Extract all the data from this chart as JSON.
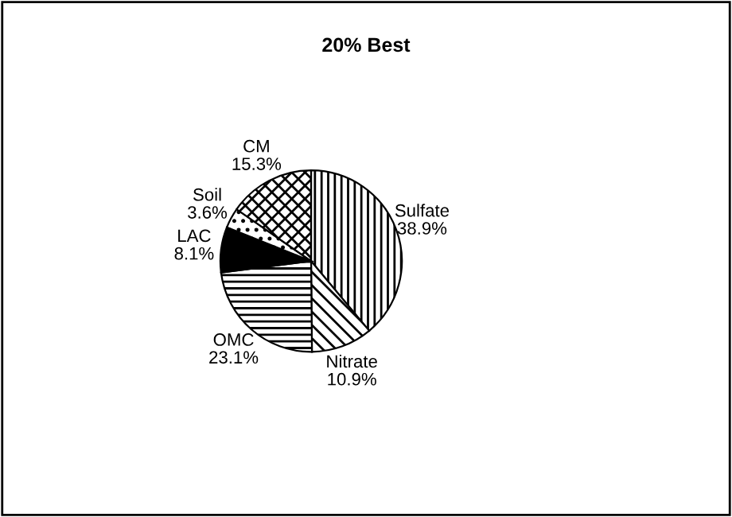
{
  "chart_data": {
    "type": "pie",
    "title": "20% Best",
    "categories": [
      "Sulfate",
      "Nitrate",
      "OMC",
      "LAC",
      "Soil",
      "CM"
    ],
    "values": [
      38.9,
      10.9,
      23.1,
      8.1,
      3.6,
      15.3
    ],
    "value_labels": [
      "38.9%",
      "10.9%",
      "23.1%",
      "8.1%",
      "3.6%",
      "15.3%"
    ],
    "colors": [
      "#ffffff",
      "#ffffff",
      "#ffffff",
      "#000000",
      "#ffffff",
      "#ffffff"
    ],
    "legend": false
  }
}
